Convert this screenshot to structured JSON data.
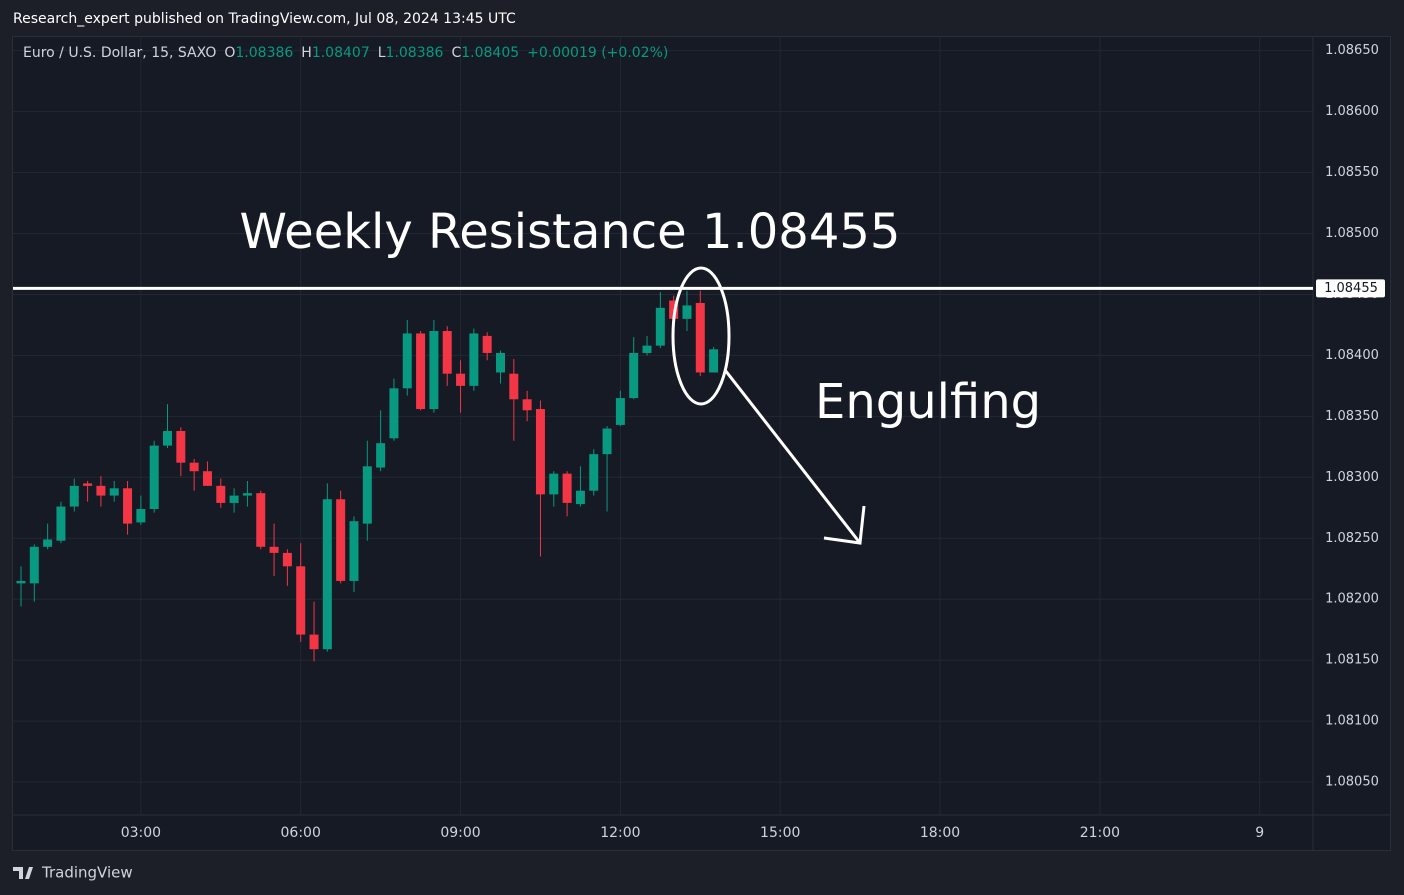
{
  "header": {
    "attribution": "Research_expert published on TradingView.com, Jul 08, 2024 13:45 UTC",
    "brand": "TradingView"
  },
  "chart_data": {
    "type": "candlestick",
    "symbol": "Euro / U.S. Dollar, 15, SAXO",
    "legend_labels": [
      "O",
      "H",
      "L",
      "C"
    ],
    "change": "+0.00019 (+0.02%)",
    "x": [
      "00:45",
      "01:00",
      "01:15",
      "01:30",
      "01:45",
      "02:00",
      "02:15",
      "02:30",
      "02:45",
      "03:00",
      "03:15",
      "03:30",
      "03:45",
      "04:00",
      "04:15",
      "04:30",
      "04:45",
      "05:00",
      "05:15",
      "05:30",
      "05:45",
      "06:00",
      "06:15",
      "06:30",
      "06:45",
      "07:00",
      "07:15",
      "07:30",
      "07:45",
      "08:00",
      "08:15",
      "08:30",
      "08:45",
      "09:00",
      "09:15",
      "09:30",
      "09:45",
      "10:00",
      "10:15",
      "10:30",
      "10:45",
      "11:00",
      "11:15",
      "11:30",
      "11:45",
      "12:00",
      "12:15",
      "12:30",
      "12:45",
      "13:00",
      "13:15",
      "13:30",
      "13:45"
    ],
    "open": [
      1.08213,
      1.08213,
      1.08243,
      1.08248,
      1.08276,
      1.08295,
      1.08293,
      1.08285,
      1.08291,
      1.08263,
      1.08274,
      1.08326,
      1.08338,
      1.08312,
      1.08305,
      1.08293,
      1.08279,
      1.08285,
      1.08287,
      1.08243,
      1.08238,
      1.08227,
      1.08171,
      1.08159,
      1.08282,
      1.08215,
      1.08262,
      1.08308,
      1.08332,
      1.08373,
      1.08418,
      1.08356,
      1.0842,
      1.08385,
      1.08375,
      1.08416,
      1.08386,
      1.08385,
      1.08364,
      1.08356,
      1.08286,
      1.08303,
      1.08278,
      1.08289,
      1.08319,
      1.08343,
      1.08365,
      1.08402,
      1.08408,
      1.08445,
      1.0843,
      1.08443,
      1.08386
    ],
    "high": [
      1.08227,
      1.08245,
      1.08262,
      1.0828,
      1.08299,
      1.08297,
      1.08301,
      1.08297,
      1.08297,
      1.08285,
      1.0833,
      1.0836,
      1.08341,
      1.08315,
      1.08313,
      1.08299,
      1.08291,
      1.08297,
      1.08289,
      1.08262,
      1.08241,
      1.08246,
      1.08198,
      1.08295,
      1.08289,
      1.08268,
      1.0833,
      1.08355,
      1.08381,
      1.08429,
      1.0842,
      1.08429,
      1.08424,
      1.08396,
      1.08422,
      1.08419,
      1.08404,
      1.08397,
      1.08371,
      1.08363,
      1.08305,
      1.08305,
      1.08309,
      1.08323,
      1.08342,
      1.08371,
      1.08415,
      1.08416,
      1.08452,
      1.08449,
      1.08453,
      1.08453,
      1.08407
    ],
    "low": [
      1.08194,
      1.08198,
      1.08241,
      1.08246,
      1.08272,
      1.0828,
      1.08276,
      1.0828,
      1.08253,
      1.08261,
      1.08271,
      1.08324,
      1.08301,
      1.08289,
      1.08293,
      1.08275,
      1.08271,
      1.08276,
      1.08241,
      1.08219,
      1.08211,
      1.08165,
      1.08149,
      1.08157,
      1.08213,
      1.08206,
      1.08248,
      1.08305,
      1.0833,
      1.08367,
      1.08355,
      1.08353,
      1.08375,
      1.08353,
      1.08371,
      1.08396,
      1.08377,
      1.0833,
      1.08346,
      1.08235,
      1.08276,
      1.08268,
      1.08276,
      1.08285,
      1.08272,
      1.08342,
      1.08364,
      1.084,
      1.08406,
      1.08429,
      1.0842,
      1.08383,
      1.08386
    ],
    "close": [
      1.08215,
      1.08243,
      1.08249,
      1.08276,
      1.08293,
      1.08293,
      1.08285,
      1.08291,
      1.08262,
      1.08274,
      1.08326,
      1.08338,
      1.08312,
      1.08305,
      1.08293,
      1.08279,
      1.08285,
      1.08287,
      1.08243,
      1.08238,
      1.08227,
      1.08171,
      1.08159,
      1.08282,
      1.08215,
      1.08264,
      1.08309,
      1.08328,
      1.08373,
      1.08418,
      1.08356,
      1.0842,
      1.08385,
      1.08375,
      1.08418,
      1.08402,
      1.08402,
      1.08364,
      1.08355,
      1.08286,
      1.08303,
      1.08279,
      1.08289,
      1.08319,
      1.0834,
      1.08365,
      1.08402,
      1.08408,
      1.08439,
      1.0843,
      1.08441,
      1.08386,
      1.08405
    ],
    "up_color": "#089981",
    "down_color": "#f23645",
    "xlim": [
      0.6,
      25
    ],
    "xticks": [
      {
        "value": 3,
        "label": "03:00"
      },
      {
        "value": 6,
        "label": "06:00"
      },
      {
        "value": 9,
        "label": "09:00"
      },
      {
        "value": 12,
        "label": "12:00"
      },
      {
        "value": 15,
        "label": "15:00"
      },
      {
        "value": 18,
        "label": "18:00"
      },
      {
        "value": 21,
        "label": "21:00"
      },
      {
        "value": 24,
        "label": "9"
      }
    ],
    "ylim": [
      1.08023,
      1.08662
    ],
    "yticks": [
      {
        "value": 1.0805,
        "label": "1.08050"
      },
      {
        "value": 1.081,
        "label": "1.08100"
      },
      {
        "value": 1.0815,
        "label": "1.08150"
      },
      {
        "value": 1.082,
        "label": "1.08200"
      },
      {
        "value": 1.0825,
        "label": "1.08250"
      },
      {
        "value": 1.083,
        "label": "1.08300"
      },
      {
        "value": 1.0835,
        "label": "1.08350"
      },
      {
        "value": 1.084,
        "label": "1.08400"
      },
      {
        "value": 1.0845,
        "label": "1.08450"
      },
      {
        "value": 1.085,
        "label": "1.08500"
      },
      {
        "value": 1.0855,
        "label": "1.08550"
      },
      {
        "value": 1.086,
        "label": "1.08600"
      },
      {
        "value": 1.0865,
        "label": "1.08650"
      }
    ],
    "grid": true,
    "annotations": {
      "resistance_label": "Weekly Resistance 1.08455",
      "resistance": 1.08455,
      "pattern_label": "Engulfing"
    }
  }
}
